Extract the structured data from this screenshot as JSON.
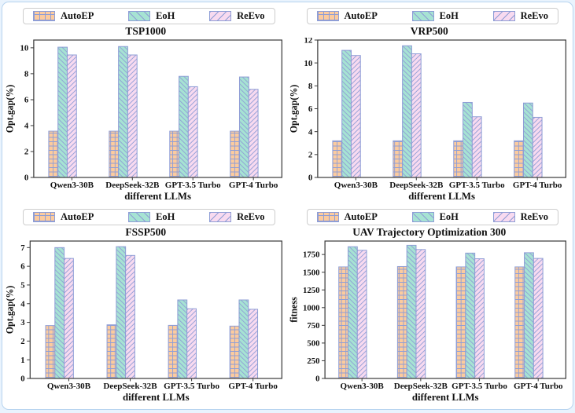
{
  "colors": {
    "autoep_fill": "#fccb9e",
    "eoh_fill": "#a6e3d3",
    "reevo_fill": "#f8daf0",
    "hatch": "#8f9ed6",
    "frame": "#3a3a3a",
    "text": "#111111",
    "legend_border": "#cdcdcd",
    "card_border": "#b7d4ef",
    "page_background": "#e9f3fd"
  },
  "chart_data": [
    {
      "type": "bar",
      "title": "TSP1000",
      "xlabel": "different LLMs",
      "ylabel": "Opt.gap(%)",
      "categories": [
        "Qwen3-30B",
        "DeepSeek-32B",
        "GPT-3.5 Turbo",
        "GPT-4 Turbo"
      ],
      "series": [
        {
          "name": "AutoEP",
          "hatch": "grid",
          "values": [
            3.57,
            3.57,
            3.57,
            3.57
          ]
        },
        {
          "name": "EoH",
          "hatch": "backslash",
          "values": [
            10.05,
            10.1,
            7.8,
            7.75
          ]
        },
        {
          "name": "ReEvo",
          "hatch": "slash",
          "values": [
            9.45,
            9.45,
            7.0,
            6.8
          ]
        }
      ],
      "yticks": [
        0,
        2,
        4,
        6,
        8,
        10
      ],
      "ylim": [
        0,
        10.6
      ],
      "grid": false,
      "legend_position": "top"
    },
    {
      "type": "bar",
      "title": "VRP500",
      "xlabel": "different LLMs",
      "ylabel": "Opt.gap(%)",
      "categories": [
        "Qwen3-30B",
        "DeepSeek-32B",
        "GPT-3.5 Turbo",
        "GPT-4 Turbo"
      ],
      "series": [
        {
          "name": "AutoEP",
          "hatch": "grid",
          "values": [
            3.2,
            3.2,
            3.2,
            3.2
          ]
        },
        {
          "name": "EoH",
          "hatch": "backslash",
          "values": [
            11.1,
            11.5,
            6.55,
            6.5
          ]
        },
        {
          "name": "ReEvo",
          "hatch": "slash",
          "values": [
            10.65,
            10.8,
            5.3,
            5.25
          ]
        }
      ],
      "yticks": [
        0,
        2,
        4,
        6,
        8,
        10,
        12
      ],
      "ylim": [
        0,
        12
      ],
      "grid": false,
      "legend_position": "top"
    },
    {
      "type": "bar",
      "title": "FSSP500",
      "xlabel": "different LLMs",
      "ylabel": "Opt.gap(%)",
      "categories": [
        "Qwen3-30B",
        "DeepSeek-32B",
        "GPT-3.5 Turbo",
        "GPT-4 Turbo"
      ],
      "series": [
        {
          "name": "AutoEP",
          "hatch": "grid",
          "values": [
            2.83,
            2.87,
            2.84,
            2.8
          ]
        },
        {
          "name": "EoH",
          "hatch": "backslash",
          "values": [
            7.0,
            7.05,
            4.2,
            4.2
          ]
        },
        {
          "name": "ReEvo",
          "hatch": "slash",
          "values": [
            6.42,
            6.58,
            3.73,
            3.7
          ]
        }
      ],
      "yticks": [
        0,
        1,
        2,
        3,
        4,
        5,
        6,
        7
      ],
      "ylim": [
        0,
        7.35
      ],
      "grid": false,
      "legend_position": "top"
    },
    {
      "type": "bar",
      "title": "UAV Trajectory Optimization 300",
      "xlabel": "different LLMs",
      "ylabel": "fitness",
      "categories": [
        "Qwen3-30B",
        "DeepSeek-32B",
        "GPT-3.5 Turbo",
        "GPT-4 Turbo"
      ],
      "series": [
        {
          "name": "AutoEP",
          "hatch": "grid",
          "values": [
            1575,
            1580,
            1575,
            1575
          ]
        },
        {
          "name": "EoH",
          "hatch": "backslash",
          "values": [
            1860,
            1880,
            1770,
            1775
          ]
        },
        {
          "name": "ReEvo",
          "hatch": "slash",
          "values": [
            1810,
            1820,
            1690,
            1695
          ]
        }
      ],
      "yticks": [
        0,
        250,
        500,
        750,
        1000,
        1250,
        1500,
        1750
      ],
      "ylim": [
        0,
        1940
      ],
      "grid": false,
      "legend_position": "top"
    }
  ]
}
